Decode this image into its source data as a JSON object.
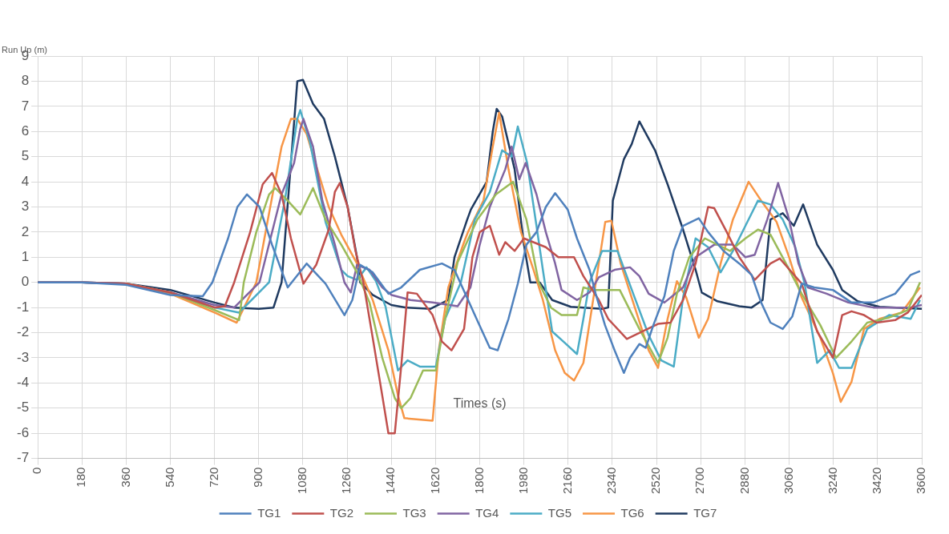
{
  "chart_data": {
    "type": "line",
    "xlabel": "Times (s)",
    "ylabel": "Run Up (m)",
    "xlim": [
      0,
      3600
    ],
    "xticks": [
      0,
      180,
      360,
      540,
      720,
      900,
      1080,
      1260,
      1440,
      1620,
      1800,
      1980,
      2160,
      2340,
      2520,
      2700,
      2880,
      3060,
      3240,
      3420,
      3600
    ],
    "ylim": [
      -7,
      9
    ],
    "yticks": [
      -7,
      -6,
      -5,
      -4,
      -3,
      -2,
      -1,
      0,
      1,
      2,
      3,
      4,
      5,
      6,
      7,
      8,
      9
    ],
    "grid": true,
    "legend": "bottom",
    "marker": "none",
    "series": [
      {
        "name": "TG1",
        "color": "#4f81bd",
        "x": [
          0,
          180,
          360,
          540,
          672,
          711,
          775,
          813,
          852,
          903,
          954,
          1018,
          1095,
          1172,
          1249,
          1281,
          1313,
          1364,
          1428,
          1480,
          1556,
          1646,
          1697,
          1787,
          1841,
          1873,
          1917,
          1955,
          1990,
          2031,
          2069,
          2107,
          2158,
          2196,
          2247,
          2272,
          2310,
          2349,
          2387,
          2412,
          2450,
          2476,
          2507,
          2552,
          2590,
          2628,
          2692,
          2730,
          2793,
          2857,
          2907,
          2946,
          2984,
          3034,
          3073,
          3111,
          3162,
          3238,
          3314,
          3403,
          3492,
          3555,
          3593
        ],
        "values": [
          0,
          0,
          -0.1,
          -0.5,
          -0.55,
          0,
          1.75,
          3,
          3.5,
          3,
          1.5,
          -0.2,
          0.75,
          -0.05,
          -1.3,
          -0.7,
          0.7,
          0.4,
          -0.45,
          -0.2,
          0.5,
          0.75,
          0.5,
          -1.45,
          -2.6,
          -2.7,
          -1.45,
          -0.05,
          1.5,
          2,
          3,
          3.55,
          2.9,
          1.75,
          0.5,
          -0.45,
          -1.7,
          -2.7,
          -3.6,
          -3,
          -2.45,
          -2.6,
          -1.7,
          -0.55,
          1.25,
          2.25,
          2.55,
          2,
          1.25,
          0.75,
          0.3,
          -0.8,
          -1.6,
          -1.85,
          -1.35,
          -0.05,
          -0.2,
          -0.3,
          -0.8,
          -0.8,
          -0.45,
          0.3,
          0.45
        ]
      },
      {
        "name": "TG2",
        "color": "#c0504d",
        "x": [
          0,
          180,
          360,
          540,
          720,
          762,
          800,
          865,
          916,
          954,
          993,
          1031,
          1082,
          1134,
          1185,
          1210,
          1230,
          1262,
          1294,
          1326,
          1364,
          1403,
          1428,
          1454,
          1480,
          1506,
          1544,
          1608,
          1646,
          1685,
          1736,
          1770,
          1800,
          1841,
          1879,
          1904,
          1942,
          1980,
          2069,
          2120,
          2184,
          2222,
          2285,
          2323,
          2399,
          2463,
          2526,
          2577,
          2628,
          2679,
          2730,
          2755,
          2806,
          2857,
          2920,
          2984,
          3022,
          3111,
          3174,
          3238,
          3276,
          3314,
          3365,
          3416,
          3492,
          3543,
          3600
        ],
        "values": [
          0,
          0,
          -0.05,
          -0.4,
          -1,
          -0.95,
          0,
          2,
          3.9,
          4.35,
          3.5,
          1.75,
          -0.05,
          0.7,
          2.1,
          3.6,
          3.95,
          3,
          1.25,
          0,
          -2.2,
          -4.5,
          -6,
          -6,
          -3.35,
          -0.4,
          -0.45,
          -1.3,
          -2.35,
          -2.7,
          -1.85,
          1,
          2,
          2.25,
          1.1,
          1.6,
          1.25,
          1.75,
          1.4,
          1,
          1,
          0.25,
          -0.7,
          -1.45,
          -2.25,
          -1.95,
          -1.65,
          -1.6,
          -0.7,
          0.75,
          3,
          2.95,
          2,
          1,
          0.1,
          0.75,
          0.95,
          -0.05,
          -1.95,
          -3,
          -1.3,
          -1.15,
          -1.3,
          -1.6,
          -1.5,
          -1.2,
          -0.5
        ]
      },
      {
        "name": "TG3",
        "color": "#9bbb59",
        "x": [
          360,
          540,
          720,
          820,
          839,
          890,
          942,
          967,
          1018,
          1069,
          1121,
          1172,
          1236,
          1300,
          1351,
          1403,
          1454,
          1480,
          1518,
          1569,
          1621,
          1659,
          1710,
          1790,
          1866,
          1936,
          1990,
          2040,
          2090,
          2133,
          2196,
          2222,
          2260,
          2370,
          2450,
          2526,
          2565,
          2603,
          2653,
          2717,
          2768,
          2819,
          2882,
          2933,
          2984,
          3047,
          3111,
          3187,
          3251,
          3314,
          3378,
          3467,
          3543,
          3593
        ],
        "values": [
          -0.05,
          -0.4,
          -1.1,
          -1.5,
          0,
          2,
          3.5,
          3.75,
          3.25,
          2.7,
          3.75,
          2.5,
          1.5,
          0.4,
          -0.8,
          -3,
          -4.6,
          -5,
          -4.6,
          -3.5,
          -3.5,
          -1.45,
          0.8,
          2.5,
          3.5,
          4,
          2.5,
          0,
          -1,
          -1.3,
          -1.3,
          -0.2,
          -0.3,
          -0.3,
          -1.85,
          -3.2,
          -2.2,
          -0.45,
          1,
          1.75,
          1.5,
          1.25,
          1.75,
          2.1,
          1.9,
          0.75,
          -0.45,
          -1.7,
          -3,
          -2.35,
          -1.6,
          -1.4,
          -1.1,
          0
        ]
      },
      {
        "name": "TG4",
        "color": "#8064a2",
        "x": [
          0,
          180,
          360,
          540,
          720,
          800,
          903,
          967,
          993,
          1044,
          1069,
          1082,
          1121,
          1159,
          1210,
          1249,
          1275,
          1300,
          1351,
          1403,
          1441,
          1518,
          1608,
          1710,
          1762,
          1800,
          1841,
          1904,
          1930,
          1961,
          1987,
          2031,
          2069,
          2107,
          2133,
          2196,
          2247,
          2285,
          2349,
          2412,
          2450,
          2488,
          2552,
          2628,
          2679,
          2755,
          2831,
          2882,
          2920,
          2971,
          3015,
          3060,
          3098,
          3136,
          3213,
          3301,
          3403,
          3555,
          3600
        ],
        "values": [
          0,
          0,
          -0.05,
          -0.4,
          -0.9,
          -1,
          0,
          2.5,
          3.5,
          4.75,
          6.1,
          6.5,
          5.4,
          3.25,
          1.5,
          0,
          -0.4,
          0.7,
          0.5,
          -0.2,
          -0.5,
          -0.7,
          -0.8,
          -0.95,
          -0.2,
          1.5,
          3,
          4.5,
          5.4,
          4.1,
          4.75,
          3.5,
          2,
          0.75,
          -0.3,
          -0.7,
          -0.4,
          0.2,
          0.5,
          0.6,
          0.25,
          -0.45,
          -0.8,
          -0.2,
          1,
          1.5,
          1.5,
          1,
          1.1,
          2.5,
          3.95,
          2.5,
          0.75,
          -0.2,
          -0.45,
          -0.8,
          -1,
          -1,
          -0.9
        ]
      },
      {
        "name": "TG5",
        "color": "#4bacc6",
        "x": [
          0,
          180,
          360,
          540,
          720,
          820,
          942,
          1006,
          1057,
          1069,
          1108,
          1172,
          1236,
          1262,
          1300,
          1339,
          1377,
          1416,
          1467,
          1506,
          1556,
          1621,
          1659,
          1723,
          1780,
          1841,
          1891,
          1930,
          1955,
          1993,
          2031,
          2057,
          2095,
          2146,
          2196,
          2222,
          2247,
          2298,
          2361,
          2425,
          2488,
          2539,
          2590,
          2628,
          2679,
          2730,
          2781,
          2831,
          2882,
          2933,
          2984,
          3034,
          3085,
          3123,
          3174,
          3225,
          3263,
          3314,
          3378,
          3467,
          3555,
          3593
        ],
        "values": [
          0,
          0,
          -0.05,
          -0.4,
          -1,
          -1.2,
          0,
          3.25,
          6.5,
          6.85,
          5.6,
          2.4,
          0.5,
          0.25,
          0.1,
          0.6,
          0.05,
          -0.95,
          -3.5,
          -3.1,
          -3.35,
          -3.35,
          -1.45,
          0,
          2.5,
          3.6,
          5.25,
          5,
          6.2,
          4.75,
          2.25,
          0.5,
          -1.95,
          -2.4,
          -2.85,
          -1.45,
          0,
          1.25,
          1.25,
          -0.45,
          -2.1,
          -3.1,
          -3.35,
          -0.6,
          1.75,
          1.4,
          0.4,
          1.25,
          2.25,
          3.25,
          3.1,
          2.5,
          1.4,
          -0.05,
          -3.2,
          -2.7,
          -3.4,
          -3.4,
          -1.85,
          -1.3,
          -1.45,
          -0.7
        ]
      },
      {
        "name": "TG6",
        "color": "#f79646",
        "x": [
          360,
          540,
          720,
          810,
          890,
          942,
          993,
          1031,
          1057,
          1095,
          1146,
          1185,
          1236,
          1300,
          1364,
          1428,
          1467,
          1493,
          1608,
          1633,
          1672,
          1736,
          1752,
          1815,
          1853,
          1879,
          1917,
          1968,
          2019,
          2057,
          2107,
          2146,
          2184,
          2222,
          2260,
          2311,
          2336,
          2374,
          2425,
          2488,
          2526,
          2565,
          2603,
          2641,
          2692,
          2730,
          2781,
          2831,
          2895,
          2946,
          3009,
          3060,
          3111,
          3187,
          3238,
          3270,
          3314,
          3365,
          3428,
          3518,
          3593
        ],
        "values": [
          -0.05,
          -0.45,
          -1.2,
          -1.6,
          0,
          2.75,
          5.4,
          6.5,
          6.5,
          5.9,
          4.25,
          3,
          1.9,
          0.75,
          -0.7,
          -2.7,
          -4.5,
          -5.4,
          -5.5,
          -2.7,
          -0.2,
          1.6,
          2,
          3.25,
          5.4,
          6.75,
          4.5,
          2,
          0.5,
          -0.7,
          -2.7,
          -3.6,
          -3.9,
          -3.2,
          -0.8,
          2.4,
          2.45,
          0.75,
          -0.8,
          -2.7,
          -3.4,
          -1.45,
          0.05,
          -0.6,
          -2.2,
          -1.45,
          0.75,
          2.5,
          4,
          3.25,
          2.4,
          1,
          -0.6,
          -2.2,
          -3.6,
          -4.75,
          -3.95,
          -1.85,
          -1.45,
          -1.2,
          -0.2
        ]
      },
      {
        "name": "TG7",
        "color": "#1f3a60",
        "x": [
          0,
          180,
          360,
          540,
          720,
          800,
          900,
          960,
          993,
          1057,
          1080,
          1121,
          1166,
          1210,
          1262,
          1300,
          1313,
          1364,
          1440,
          1500,
          1600,
          1672,
          1697,
          1749,
          1764,
          1828,
          1853,
          1869,
          1891,
          1942,
          1980,
          2006,
          2044,
          2095,
          2171,
          2298,
          2323,
          2342,
          2387,
          2419,
          2450,
          2514,
          2565,
          2628,
          2679,
          2704,
          2768,
          2857,
          2907,
          2952,
          2984,
          3034,
          3079,
          3117,
          3174,
          3238,
          3276,
          3339,
          3428,
          3600
        ],
        "values": [
          0,
          0,
          -0.05,
          -0.3,
          -0.8,
          -1,
          -1.05,
          -1,
          0,
          8,
          8.05,
          7.1,
          6.5,
          5,
          3,
          1,
          0,
          -0.5,
          -0.9,
          -1,
          -1.05,
          -0.7,
          1,
          2.5,
          2.9,
          4,
          6,
          6.9,
          6.6,
          4.5,
          1.5,
          0,
          0,
          -0.7,
          -0.97,
          -1.05,
          -1,
          3.25,
          4.9,
          5.5,
          6.4,
          5.25,
          3.9,
          2.1,
          0.5,
          -0.4,
          -0.75,
          -0.95,
          -1,
          -0.7,
          2.5,
          2.75,
          2.25,
          3.1,
          1.5,
          0.5,
          -0.3,
          -0.75,
          -0.97,
          -1.05
        ]
      }
    ]
  }
}
